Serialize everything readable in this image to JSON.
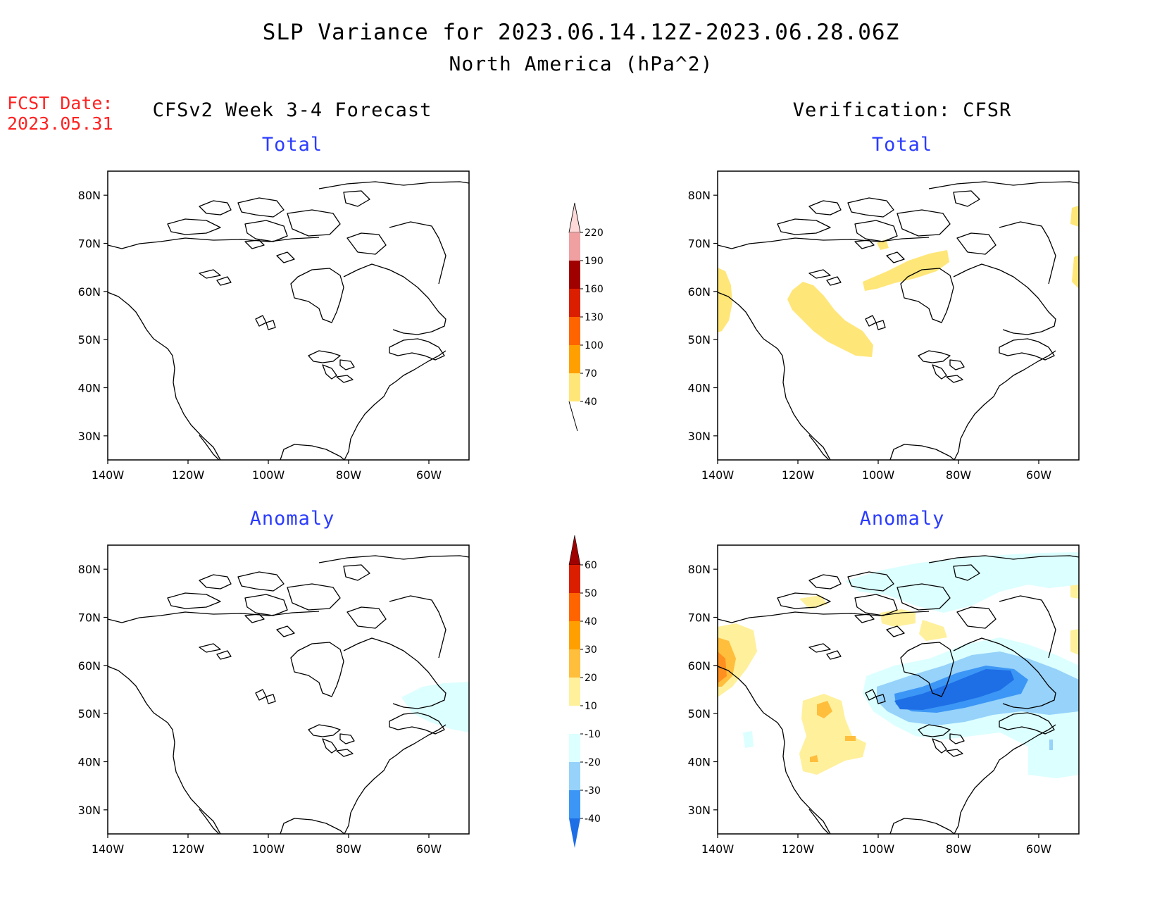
{
  "header": {
    "title": "SLP Variance for 2023.06.14.12Z-2023.06.28.06Z",
    "subtitle": "North America (hPa^2)",
    "fcst_date_label": "FCST Date:",
    "fcst_date_value": "2023.05.31"
  },
  "columns": {
    "left_title": "CFSv2 Week 3-4 Forecast",
    "right_title": "Verification: CFSR"
  },
  "panels": {
    "total_title": "Total",
    "anomaly_title": "Anomaly"
  },
  "map_axes": {
    "lat_labels": [
      "80N",
      "70N",
      "60N",
      "50N",
      "40N",
      "30N"
    ],
    "lat_values": [
      80,
      70,
      60,
      50,
      40,
      30
    ],
    "lon_labels": [
      "140W",
      "120W",
      "100W",
      "80W",
      "60W"
    ],
    "lon_values": [
      -140,
      -120,
      -100,
      -80,
      -60
    ],
    "lat_range": [
      25,
      85
    ],
    "lon_range": [
      -140,
      -50
    ]
  },
  "colorbar_total": {
    "labels": [
      "220",
      "190",
      "160",
      "130",
      "100",
      "70",
      "40"
    ],
    "colors": [
      "#ffd8d8",
      "#f0a0a0",
      "#a00000",
      "#dc1e00",
      "#ff6400",
      "#ffa000",
      "#ffe678"
    ]
  },
  "colorbar_anomaly": {
    "labels": [
      "60",
      "50",
      "40",
      "30",
      "20",
      "10",
      "-10",
      "-20",
      "-30",
      "-40"
    ],
    "colors": [
      "#a00000",
      "#dc1e00",
      "#ff6400",
      "#ffa000",
      "#ffbe3c",
      "#fff09c",
      "#ffffff",
      "#dcffff",
      "#96d2fa",
      "#3c96f5",
      "#1e6ee6"
    ]
  }
}
